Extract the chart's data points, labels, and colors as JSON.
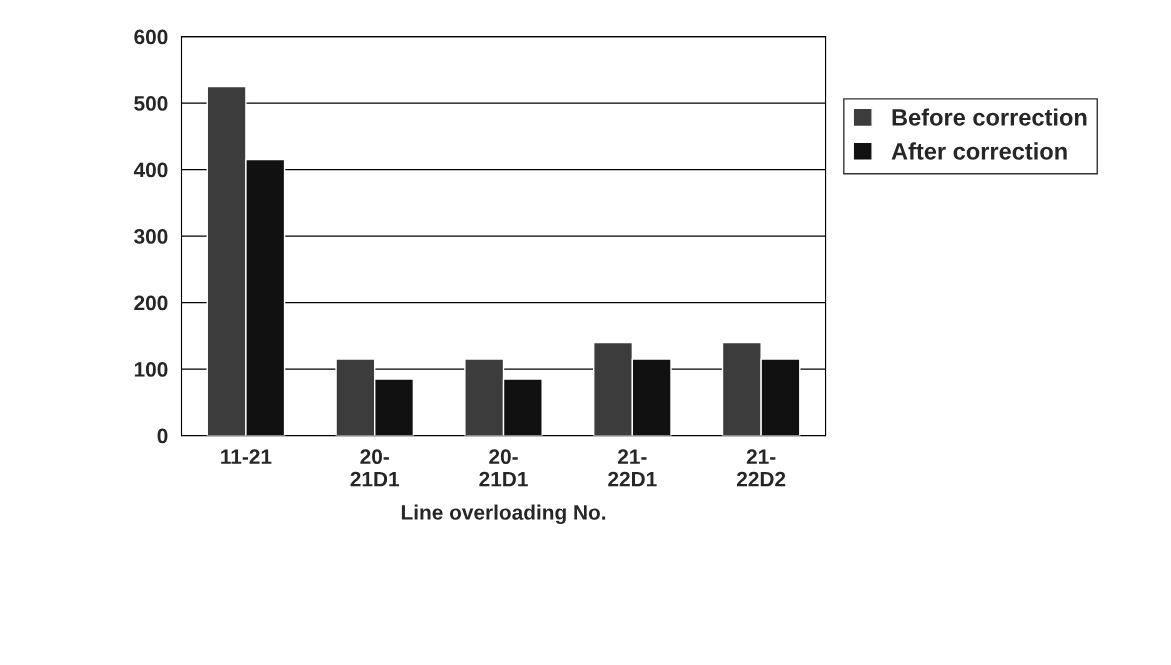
{
  "chart_data": {
    "type": "bar",
    "xlabel": "Line overloading No.",
    "categories": [
      "11-21",
      "20-\n21D1",
      "20-\n21D1",
      "21-\n22D1",
      "21-\n22D2"
    ],
    "series": [
      {
        "name": "Before correction",
        "color": "#3c3c3c",
        "values": [
          525,
          115,
          115,
          140,
          140
        ]
      },
      {
        "name": "After correction",
        "color": "#111111",
        "values": [
          415,
          85,
          85,
          115,
          115
        ]
      }
    ],
    "ylim": [
      0,
      600
    ],
    "yticks": [
      0,
      100,
      200,
      300,
      400,
      500,
      600
    ],
    "grid": "y",
    "legend": "right"
  }
}
